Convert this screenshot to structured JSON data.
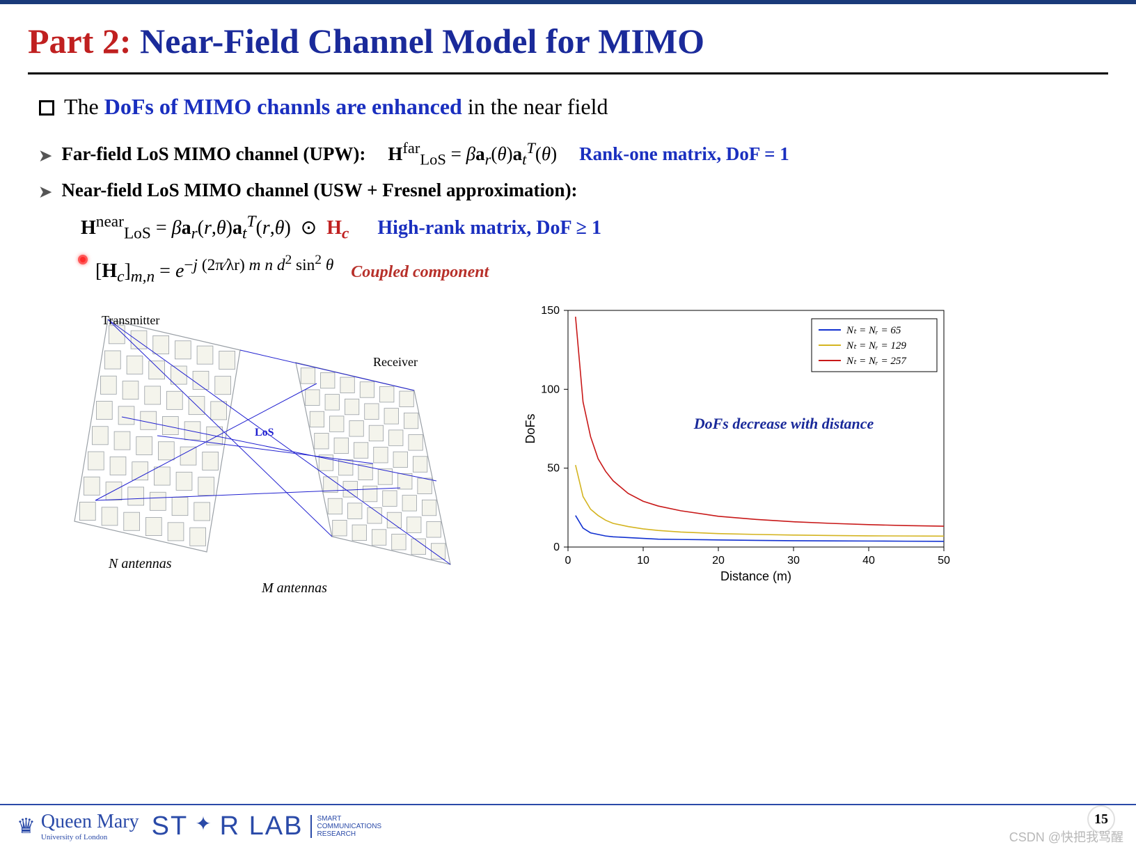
{
  "title": {
    "prefix": "Part 2:",
    "prefix_color": "#c02020",
    "main": " Near-Field Channel Model for MIMO",
    "main_color": "#1a2a9a",
    "fontsize": 50
  },
  "statement": {
    "plain_before": "The ",
    "highlight": "DoFs of MIMO channls are enhanced",
    "highlight_color": "#1a2fbf",
    "plain_after": " in the near field"
  },
  "farfield": {
    "label": "Far-field LoS MIMO channel (UPW):",
    "formula_html": "<b>H</b><sup>far</sup><sub>LoS</sub> = <i>β</i><b>a</b><sub><i>r</i></sub>(<i>θ</i>)<b>a</b><sub><i>t</i></sub><sup><i>T</i></sup>(<i>θ</i>)",
    "note": "Rank-one matrix,   DoF = 1",
    "note_color": "#1a2fbf"
  },
  "nearfield": {
    "label": "Near-field LoS MIMO channel (USW + Fresnel approximation):",
    "formula1_lhs": "<b>H</b><sup>near</sup><sub>LoS</sub> = <i>β</i><b>a</b><sub><i>r</i></sub>(<i>r</i>,<i>θ</i>)<b>a</b><sub><i>t</i></sub><sup><i>T</i></sup>(<i>r</i>,<i>θ</i>) &nbsp;⊙&nbsp;",
    "Hc": "H<sub><i>c</i></sub>",
    "Hc_color": "#c02020",
    "note1": "High-rank matrix,   DoF ≥ 1",
    "note1_color": "#1a2fbf",
    "formula2_html": "[<b>H</b><sub><i>c</i></sub>]<sub><i>m,n</i></sub> = <i>e</i><sup>−<i>j</i> (2π⁄λr) <i>m n d</i><sup>2</sup> sin<sup>2</sup> <i>θ</i></sup>",
    "coupled_label": "Coupled component"
  },
  "mimo_diagram": {
    "tx_label": "Transmitter",
    "rx_label": "Receiver",
    "los_label": "LoS",
    "n_label": "N antennas",
    "m_label": "M antennas",
    "text_fontsize": 18,
    "panel_stroke": "#9aa0a6",
    "cell_fill": "#f4f4ec",
    "ray_color": "#2020d0",
    "ray_width": 1
  },
  "dofs_chart": {
    "type": "line",
    "title_annotation": "DoFs decrease with distance",
    "annotation_color": "#1a2a9a",
    "xlabel": "Distance (m)",
    "ylabel": "DoFs",
    "xlim": [
      0,
      50
    ],
    "ylim": [
      0,
      150
    ],
    "xticks": [
      0,
      10,
      20,
      30,
      40,
      50
    ],
    "yticks": [
      0,
      50,
      100,
      150
    ],
    "background_color": "#ffffff",
    "axis_color": "#000000",
    "axis_width": 1,
    "tick_fontsize": 16,
    "label_fontsize": 18,
    "line_width": 1.6,
    "legend": {
      "position": "top-right",
      "border_color": "#000000",
      "items": [
        {
          "label": "Nₜ = Nᵣ = 65",
          "color": "#1030d0"
        },
        {
          "label": "Nₜ = Nᵣ = 129",
          "color": "#d4b420"
        },
        {
          "label": "Nₜ = Nᵣ = 257",
          "color": "#c81818"
        }
      ]
    },
    "series": [
      {
        "name": "Nt=Nr=65",
        "color": "#1030d0",
        "x": [
          1,
          2,
          3,
          4,
          5,
          6,
          8,
          10,
          12,
          15,
          20,
          25,
          30,
          35,
          40,
          45,
          50
        ],
        "y": [
          20,
          12,
          9,
          8,
          7,
          6.5,
          6,
          5.5,
          5,
          4.8,
          4.5,
          4.2,
          4,
          3.9,
          3.8,
          3.7,
          3.6
        ]
      },
      {
        "name": "Nt=Nr=129",
        "color": "#d4b420",
        "x": [
          1,
          2,
          3,
          4,
          5,
          6,
          8,
          10,
          12,
          15,
          20,
          25,
          30,
          35,
          40,
          45,
          50
        ],
        "y": [
          52,
          32,
          24,
          20,
          17,
          15,
          13,
          11.5,
          10.5,
          9.5,
          8.5,
          8,
          7.6,
          7.3,
          7.1,
          7,
          6.9
        ]
      },
      {
        "name": "Nt=Nr=257",
        "color": "#c81818",
        "x": [
          1,
          2,
          3,
          4,
          5,
          6,
          8,
          10,
          12,
          15,
          20,
          25,
          30,
          35,
          40,
          45,
          50
        ],
        "y": [
          146,
          92,
          70,
          56,
          48,
          42,
          34,
          29,
          26,
          23,
          19.5,
          17.5,
          16,
          15,
          14.2,
          13.6,
          13.2
        ]
      }
    ]
  },
  "footer": {
    "qm_text": "Queen Mary",
    "qm_sub": "University of London",
    "star": "ST",
    "star2": "R LAB",
    "lab_tag1": "SMART",
    "lab_tag2": "COMMUNICATIONS",
    "lab_tag3": "RESEARCH",
    "page": "15",
    "watermark": "CSDN @快把我骂醒"
  }
}
